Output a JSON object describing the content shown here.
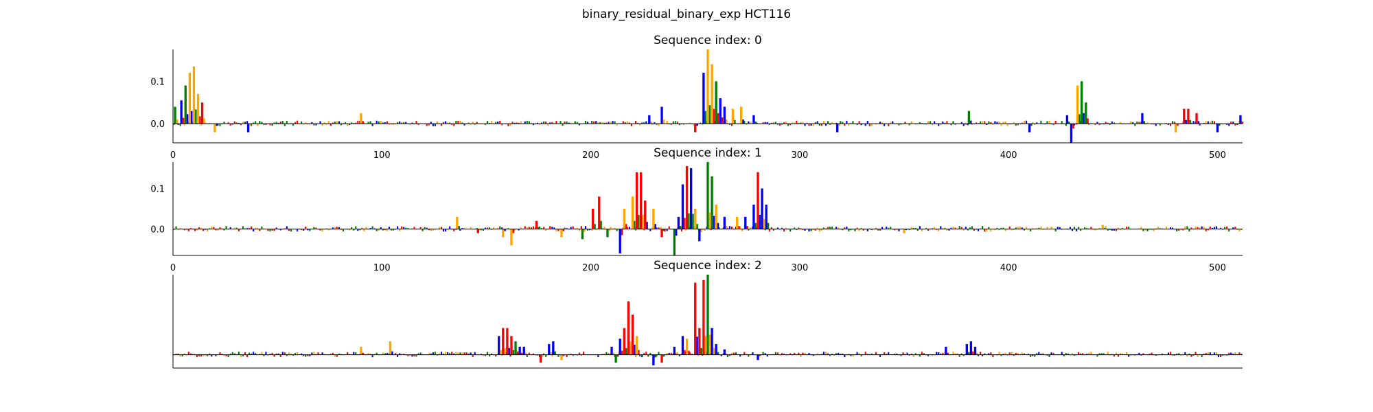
{
  "figure": {
    "suptitle": "binary_residual_binary_exp HCT116"
  },
  "colors": {
    "A": "#008000",
    "C": "#0000ff",
    "G": "#ffa500",
    "T": "#ff0000",
    "axis": "#000000"
  },
  "chart_data": [
    {
      "type": "bar",
      "subtype": "sequence-logo",
      "title": "Sequence index: 0",
      "xlim": [
        0,
        512
      ],
      "ylim": [
        -0.045,
        0.175
      ],
      "xticks": [
        0,
        100,
        200,
        300,
        400,
        500
      ],
      "yticks": [
        0.0,
        0.1
      ],
      "ytick_labels": [
        "0.0",
        "0.1"
      ],
      "peaks": [
        {
          "x": 1,
          "value": 0.04,
          "base": "A"
        },
        {
          "x": 4,
          "value": 0.055,
          "base": "C"
        },
        {
          "x": 6,
          "value": 0.09,
          "base": "A"
        },
        {
          "x": 8,
          "value": 0.12,
          "base": "G"
        },
        {
          "x": 10,
          "value": 0.135,
          "base": "G"
        },
        {
          "x": 12,
          "value": 0.07,
          "base": "G"
        },
        {
          "x": 14,
          "value": 0.05,
          "base": "T"
        },
        {
          "x": 20,
          "value": -0.02,
          "base": "G"
        },
        {
          "x": 36,
          "value": -0.02,
          "base": "C"
        },
        {
          "x": 90,
          "value": 0.025,
          "base": "G"
        },
        {
          "x": 228,
          "value": 0.02,
          "base": "C"
        },
        {
          "x": 234,
          "value": 0.04,
          "base": "C"
        },
        {
          "x": 250,
          "value": -0.02,
          "base": "T"
        },
        {
          "x": 254,
          "value": 0.12,
          "base": "C"
        },
        {
          "x": 256,
          "value": 0.175,
          "base": "G"
        },
        {
          "x": 258,
          "value": 0.14,
          "base": "G"
        },
        {
          "x": 260,
          "value": 0.1,
          "base": "A"
        },
        {
          "x": 262,
          "value": 0.06,
          "base": "C"
        },
        {
          "x": 264,
          "value": 0.04,
          "base": "C"
        },
        {
          "x": 268,
          "value": 0.035,
          "base": "G"
        },
        {
          "x": 272,
          "value": 0.04,
          "base": "G"
        },
        {
          "x": 278,
          "value": 0.02,
          "base": "C"
        },
        {
          "x": 318,
          "value": -0.02,
          "base": "C"
        },
        {
          "x": 381,
          "value": 0.03,
          "base": "A"
        },
        {
          "x": 410,
          "value": -0.02,
          "base": "C"
        },
        {
          "x": 428,
          "value": 0.02,
          "base": "C"
        },
        {
          "x": 430,
          "value": -0.045,
          "base": "C"
        },
        {
          "x": 433,
          "value": 0.09,
          "base": "G"
        },
        {
          "x": 435,
          "value": 0.1,
          "base": "A"
        },
        {
          "x": 437,
          "value": 0.05,
          "base": "A"
        },
        {
          "x": 464,
          "value": 0.025,
          "base": "C"
        },
        {
          "x": 480,
          "value": -0.02,
          "base": "G"
        },
        {
          "x": 484,
          "value": 0.035,
          "base": "T"
        },
        {
          "x": 486,
          "value": 0.035,
          "base": "T"
        },
        {
          "x": 490,
          "value": 0.025,
          "base": "T"
        },
        {
          "x": 500,
          "value": -0.02,
          "base": "C"
        },
        {
          "x": 511,
          "value": 0.02,
          "base": "C"
        }
      ]
    },
    {
      "type": "bar",
      "subtype": "sequence-logo",
      "title": "Sequence index: 1",
      "xlim": [
        0,
        512
      ],
      "ylim": [
        -0.065,
        0.165
      ],
      "xticks": [
        0,
        100,
        200,
        300,
        400,
        500
      ],
      "yticks": [
        0.0,
        0.1
      ],
      "ytick_labels": [
        "0.0",
        "0.1"
      ],
      "peaks": [
        {
          "x": 136,
          "value": 0.03,
          "base": "G"
        },
        {
          "x": 146,
          "value": -0.01,
          "base": "T"
        },
        {
          "x": 158,
          "value": -0.02,
          "base": "G"
        },
        {
          "x": 162,
          "value": -0.04,
          "base": "G"
        },
        {
          "x": 174,
          "value": 0.02,
          "base": "T"
        },
        {
          "x": 186,
          "value": -0.02,
          "base": "G"
        },
        {
          "x": 196,
          "value": -0.025,
          "base": "A"
        },
        {
          "x": 201,
          "value": 0.05,
          "base": "T"
        },
        {
          "x": 204,
          "value": 0.08,
          "base": "T"
        },
        {
          "x": 208,
          "value": -0.02,
          "base": "A"
        },
        {
          "x": 214,
          "value": -0.06,
          "base": "C"
        },
        {
          "x": 216,
          "value": 0.05,
          "base": "G"
        },
        {
          "x": 220,
          "value": 0.08,
          "base": "G"
        },
        {
          "x": 222,
          "value": 0.14,
          "base": "T"
        },
        {
          "x": 224,
          "value": 0.14,
          "base": "T"
        },
        {
          "x": 226,
          "value": 0.07,
          "base": "T"
        },
        {
          "x": 230,
          "value": 0.05,
          "base": "G"
        },
        {
          "x": 234,
          "value": -0.02,
          "base": "T"
        },
        {
          "x": 240,
          "value": -0.065,
          "base": "A"
        },
        {
          "x": 242,
          "value": 0.03,
          "base": "C"
        },
        {
          "x": 244,
          "value": 0.11,
          "base": "C"
        },
        {
          "x": 246,
          "value": 0.155,
          "base": "T"
        },
        {
          "x": 248,
          "value": 0.15,
          "base": "C"
        },
        {
          "x": 250,
          "value": 0.05,
          "base": "G"
        },
        {
          "x": 252,
          "value": -0.03,
          "base": "C"
        },
        {
          "x": 256,
          "value": 0.165,
          "base": "A"
        },
        {
          "x": 258,
          "value": 0.13,
          "base": "A"
        },
        {
          "x": 260,
          "value": 0.06,
          "base": "G"
        },
        {
          "x": 264,
          "value": 0.03,
          "base": "C"
        },
        {
          "x": 270,
          "value": 0.03,
          "base": "G"
        },
        {
          "x": 274,
          "value": 0.03,
          "base": "C"
        },
        {
          "x": 278,
          "value": 0.06,
          "base": "C"
        },
        {
          "x": 280,
          "value": 0.14,
          "base": "T"
        },
        {
          "x": 282,
          "value": 0.1,
          "base": "C"
        },
        {
          "x": 284,
          "value": 0.06,
          "base": "C"
        },
        {
          "x": 350,
          "value": -0.01,
          "base": "G"
        },
        {
          "x": 445,
          "value": 0.01,
          "base": "G"
        }
      ]
    },
    {
      "type": "bar",
      "subtype": "sequence-logo",
      "title": "Sequence index: 2",
      "xlim": [
        0,
        512
      ],
      "ylim": [
        -0.05,
        0.3
      ],
      "xticks": [],
      "yticks": [],
      "peaks": [
        {
          "x": 90,
          "value": 0.03,
          "base": "G"
        },
        {
          "x": 104,
          "value": 0.05,
          "base": "G"
        },
        {
          "x": 156,
          "value": 0.07,
          "base": "C"
        },
        {
          "x": 158,
          "value": 0.1,
          "base": "T"
        },
        {
          "x": 160,
          "value": 0.1,
          "base": "T"
        },
        {
          "x": 162,
          "value": 0.07,
          "base": "T"
        },
        {
          "x": 164,
          "value": 0.05,
          "base": "A"
        },
        {
          "x": 166,
          "value": 0.03,
          "base": "C"
        },
        {
          "x": 168,
          "value": 0.03,
          "base": "C"
        },
        {
          "x": 176,
          "value": -0.03,
          "base": "T"
        },
        {
          "x": 180,
          "value": 0.04,
          "base": "C"
        },
        {
          "x": 182,
          "value": 0.05,
          "base": "C"
        },
        {
          "x": 186,
          "value": -0.02,
          "base": "G"
        },
        {
          "x": 210,
          "value": 0.03,
          "base": "C"
        },
        {
          "x": 212,
          "value": -0.03,
          "base": "A"
        },
        {
          "x": 214,
          "value": 0.06,
          "base": "C"
        },
        {
          "x": 216,
          "value": 0.1,
          "base": "T"
        },
        {
          "x": 218,
          "value": 0.2,
          "base": "T"
        },
        {
          "x": 220,
          "value": 0.15,
          "base": "T"
        },
        {
          "x": 222,
          "value": 0.07,
          "base": "G"
        },
        {
          "x": 230,
          "value": -0.04,
          "base": "C"
        },
        {
          "x": 234,
          "value": -0.03,
          "base": "T"
        },
        {
          "x": 240,
          "value": 0.03,
          "base": "C"
        },
        {
          "x": 244,
          "value": 0.07,
          "base": "C"
        },
        {
          "x": 246,
          "value": 0.06,
          "base": "G"
        },
        {
          "x": 250,
          "value": 0.27,
          "base": "T"
        },
        {
          "x": 252,
          "value": 0.1,
          "base": "T"
        },
        {
          "x": 254,
          "value": 0.28,
          "base": "T"
        },
        {
          "x": 256,
          "value": 0.3,
          "base": "A"
        },
        {
          "x": 258,
          "value": 0.1,
          "base": "C"
        },
        {
          "x": 260,
          "value": 0.04,
          "base": "C"
        },
        {
          "x": 264,
          "value": 0.02,
          "base": "C"
        },
        {
          "x": 280,
          "value": -0.02,
          "base": "C"
        },
        {
          "x": 370,
          "value": 0.03,
          "base": "C"
        },
        {
          "x": 380,
          "value": 0.04,
          "base": "C"
        },
        {
          "x": 382,
          "value": 0.05,
          "base": "C"
        },
        {
          "x": 384,
          "value": 0.03,
          "base": "C"
        }
      ]
    }
  ]
}
